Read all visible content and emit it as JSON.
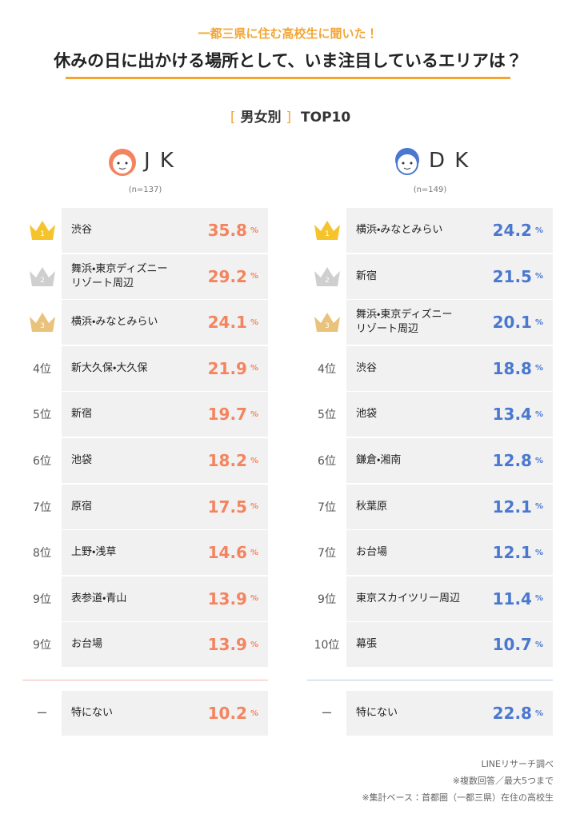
{
  "header": {
    "subtitle": "一都三県に住む高校生に聞いた！",
    "title": "休みの日に出かける場所として、いま注目しているエリアは？"
  },
  "section": {
    "open": "[",
    "label": "男女別",
    "close": "]",
    "title": "TOP10"
  },
  "unit": "%",
  "groups": [
    {
      "name": "J K",
      "n": "(n=137)",
      "color": "#f4845f",
      "line": "#f3b8b0",
      "rows": [
        {
          "rank": "1",
          "name": "渋谷",
          "value": 35.8
        },
        {
          "rank": "2",
          "name": "舞浜・東京ディズニー\nリゾート周辺",
          "value": 29.2
        },
        {
          "rank": "3",
          "name": "横浜・みなとみらい",
          "value": 24.1
        },
        {
          "rank": "4位",
          "name": "新大久保・大久保",
          "value": 21.9
        },
        {
          "rank": "5位",
          "name": "新宿",
          "value": 19.7
        },
        {
          "rank": "6位",
          "name": "池袋",
          "value": 18.2
        },
        {
          "rank": "7位",
          "name": "原宿",
          "value": 17.5
        },
        {
          "rank": "8位",
          "name": "上野・浅草",
          "value": 14.6
        },
        {
          "rank": "9位",
          "name": "表参道・青山",
          "value": 13.9
        },
        {
          "rank": "9位",
          "name": "お台場",
          "value": 13.9
        }
      ],
      "other": {
        "rank": "ー",
        "name": "特にない",
        "value": 10.2
      }
    },
    {
      "name": "D K",
      "n": "(n=149)",
      "color": "#4a78d0",
      "line": "#b7c8e8",
      "rows": [
        {
          "rank": "1",
          "name": "横浜・みなとみらい",
          "value": 24.2
        },
        {
          "rank": "2",
          "name": "新宿",
          "value": 21.5
        },
        {
          "rank": "3",
          "name": "舞浜・東京ディズニー\nリゾート周辺",
          "value": 20.1
        },
        {
          "rank": "4位",
          "name": "渋谷",
          "value": 18.8
        },
        {
          "rank": "5位",
          "name": "池袋",
          "value": 13.4
        },
        {
          "rank": "6位",
          "name": "鎌倉・湘南",
          "value": 12.8
        },
        {
          "rank": "7位",
          "name": "秋葉原",
          "value": 12.1
        },
        {
          "rank": "7位",
          "name": "お台場",
          "value": 12.1
        },
        {
          "rank": "9位",
          "name": "東京スカイツリー周辺",
          "value": 11.4
        },
        {
          "rank": "10位",
          "name": "幕張",
          "value": 10.7
        }
      ],
      "other": {
        "rank": "ー",
        "name": "特にない",
        "value": 22.8
      }
    }
  ],
  "notes": [
    "LINEリサーチ調べ",
    "※複数回答／最大5つまで",
    "※集計ベース：首都圏（一都三県）在住の高校生"
  ]
}
